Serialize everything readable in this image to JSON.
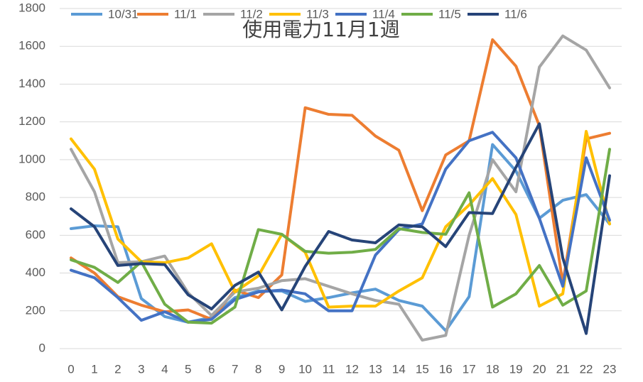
{
  "chart_data": {
    "type": "line",
    "title": "使用電力11月1週",
    "x": [
      0,
      1,
      2,
      3,
      4,
      5,
      6,
      7,
      8,
      9,
      10,
      11,
      12,
      13,
      14,
      15,
      16,
      17,
      18,
      19,
      20,
      21,
      22,
      23
    ],
    "xlim": [
      0,
      23
    ],
    "ylim": [
      0,
      1800
    ],
    "yticks": [
      0,
      200,
      400,
      600,
      800,
      1000,
      1200,
      1400,
      1600,
      1800
    ],
    "grid": true,
    "legend": "top",
    "series": [
      {
        "name": "10/31",
        "color": "#5b9bd5",
        "values": [
          635,
          650,
          645,
          265,
          170,
          140,
          165,
          270,
          305,
          305,
          250,
          270,
          295,
          315,
          255,
          225,
          95,
          275,
          1080,
          940,
          690,
          785,
          815,
          660
        ]
      },
      {
        "name": "11/1",
        "color": "#ed7d31",
        "values": [
          480,
          400,
          275,
          230,
          195,
          205,
          155,
          310,
          270,
          390,
          1275,
          1240,
          1235,
          1125,
          1050,
          730,
          1025,
          1100,
          1635,
          1495,
          1180,
          345,
          1110,
          1140
        ]
      },
      {
        "name": "11/2",
        "color": "#a5a5a5",
        "values": [
          1055,
          830,
          455,
          460,
          490,
          295,
          175,
          300,
          320,
          360,
          370,
          330,
          290,
          255,
          235,
          45,
          70,
          600,
          1000,
          830,
          1490,
          1655,
          1580,
          1380
        ]
      },
      {
        "name": "11/3",
        "color": "#ffc000",
        "values": [
          1110,
          950,
          580,
          460,
          455,
          480,
          555,
          300,
          385,
          605,
          510,
          220,
          225,
          225,
          305,
          375,
          645,
          760,
          900,
          710,
          225,
          290,
          1150,
          660
        ]
      },
      {
        "name": "11/4",
        "color": "#4472c4",
        "values": [
          415,
          375,
          270,
          150,
          195,
          140,
          155,
          260,
          300,
          310,
          290,
          200,
          200,
          495,
          630,
          660,
          950,
          1100,
          1145,
          1010,
          690,
          330,
          1010,
          680
        ]
      },
      {
        "name": "11/5",
        "color": "#70ad47",
        "values": [
          470,
          430,
          350,
          460,
          235,
          140,
          135,
          220,
          630,
          605,
          515,
          505,
          510,
          525,
          635,
          615,
          605,
          825,
          220,
          290,
          440,
          230,
          305,
          1055
        ]
      },
      {
        "name": "11/6",
        "color": "#264478",
        "values": [
          740,
          645,
          440,
          450,
          445,
          285,
          210,
          335,
          405,
          205,
          435,
          620,
          575,
          560,
          655,
          645,
          540,
          720,
          715,
          960,
          1190,
          480,
          80,
          915
        ]
      }
    ]
  }
}
